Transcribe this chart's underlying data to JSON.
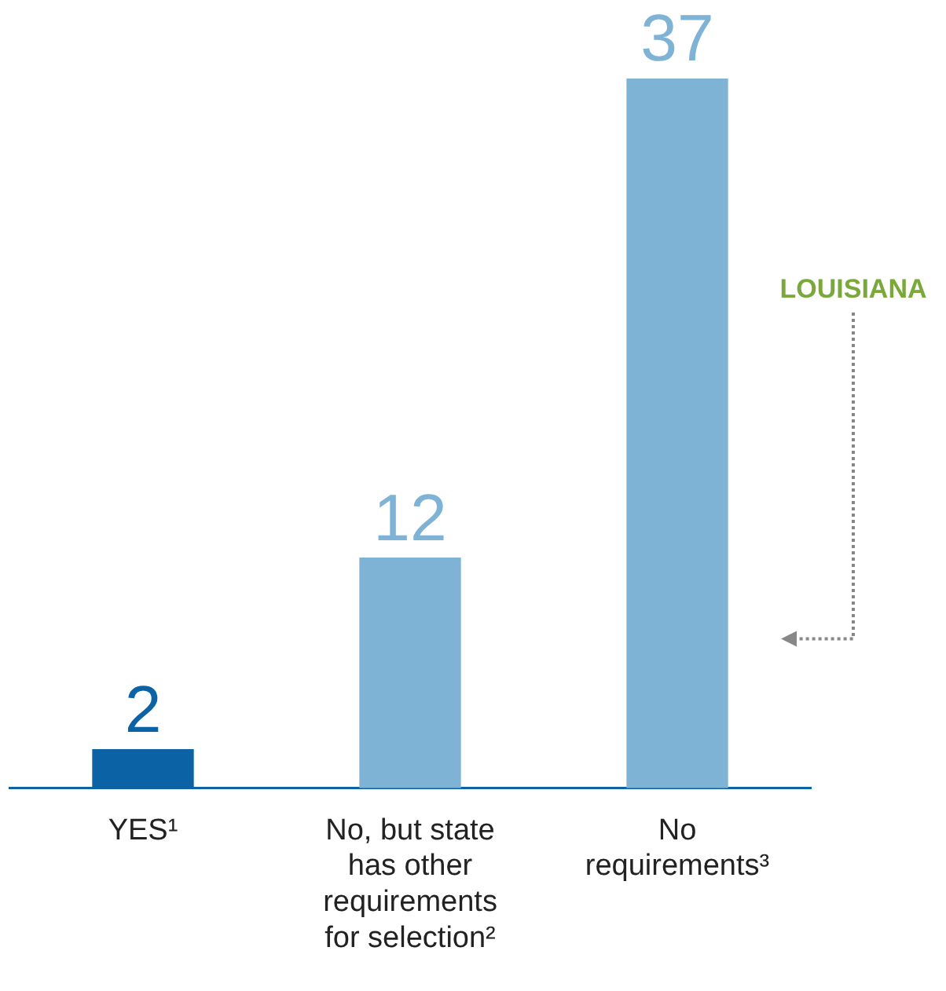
{
  "chart_data": {
    "type": "bar",
    "categories": [
      "YES¹",
      "No, but state has other requirements for selection²",
      "No requirements³"
    ],
    "values": [
      2,
      12,
      37
    ],
    "colors": [
      "#0b62a4",
      "#7fb3d5",
      "#7fb3d5"
    ],
    "data_labels": true,
    "grid": false,
    "legend": false,
    "annotations": [
      "LOUISIANA"
    ]
  }
}
